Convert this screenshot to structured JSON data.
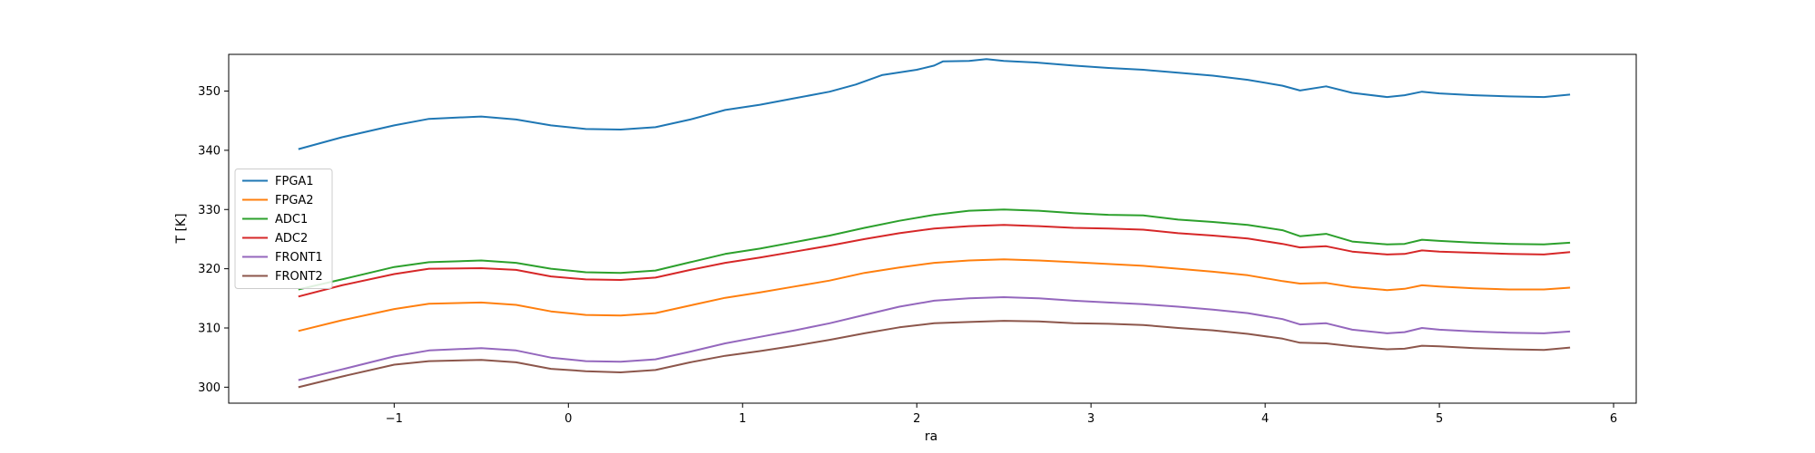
{
  "chart_data": {
    "type": "line",
    "title": "",
    "xlabel": "ra",
    "ylabel": "T [K]",
    "xlim": [
      -1.95,
      6.13
    ],
    "ylim": [
      297.3,
      356.2
    ],
    "xticks": [
      -1,
      0,
      1,
      2,
      3,
      4,
      5,
      6
    ],
    "yticks": [
      300,
      310,
      320,
      330,
      340,
      350
    ],
    "grid": false,
    "legend_position": "center-left",
    "series": [
      {
        "name": "FPGA1",
        "color": "#1f77b4",
        "points": [
          [
            -1.55,
            340.2
          ],
          [
            -1.3,
            342.2
          ],
          [
            -1.0,
            344.2
          ],
          [
            -0.8,
            345.3
          ],
          [
            -0.5,
            345.7
          ],
          [
            -0.3,
            345.2
          ],
          [
            -0.1,
            344.2
          ],
          [
            0.1,
            343.6
          ],
          [
            0.3,
            343.5
          ],
          [
            0.5,
            343.9
          ],
          [
            0.7,
            345.2
          ],
          [
            0.9,
            346.8
          ],
          [
            1.1,
            347.7
          ],
          [
            1.3,
            348.8
          ],
          [
            1.5,
            349.9
          ],
          [
            1.65,
            351.1
          ],
          [
            1.8,
            352.7
          ],
          [
            2.0,
            353.6
          ],
          [
            2.1,
            354.3
          ],
          [
            2.15,
            355.0
          ],
          [
            2.3,
            355.1
          ],
          [
            2.4,
            355.4
          ],
          [
            2.5,
            355.1
          ],
          [
            2.7,
            354.8
          ],
          [
            2.9,
            354.3
          ],
          [
            3.1,
            353.9
          ],
          [
            3.3,
            353.6
          ],
          [
            3.5,
            353.1
          ],
          [
            3.7,
            352.6
          ],
          [
            3.9,
            351.9
          ],
          [
            4.1,
            350.9
          ],
          [
            4.2,
            350.1
          ],
          [
            4.35,
            350.8
          ],
          [
            4.5,
            349.7
          ],
          [
            4.7,
            349.0
          ],
          [
            4.8,
            349.3
          ],
          [
            4.9,
            349.9
          ],
          [
            5.0,
            349.6
          ],
          [
            5.2,
            349.3
          ],
          [
            5.4,
            349.1
          ],
          [
            5.6,
            349.0
          ],
          [
            5.75,
            349.4
          ]
        ]
      },
      {
        "name": "FPGA2",
        "color": "#ff7f0e",
        "points": [
          [
            -1.55,
            309.5
          ],
          [
            -1.3,
            311.3
          ],
          [
            -1.0,
            313.2
          ],
          [
            -0.8,
            314.1
          ],
          [
            -0.5,
            314.3
          ],
          [
            -0.3,
            313.9
          ],
          [
            -0.1,
            312.8
          ],
          [
            0.1,
            312.2
          ],
          [
            0.3,
            312.1
          ],
          [
            0.5,
            312.5
          ],
          [
            0.7,
            313.8
          ],
          [
            0.9,
            315.1
          ],
          [
            1.1,
            316.0
          ],
          [
            1.3,
            317.0
          ],
          [
            1.5,
            318.0
          ],
          [
            1.7,
            319.3
          ],
          [
            1.9,
            320.2
          ],
          [
            2.1,
            321.0
          ],
          [
            2.3,
            321.4
          ],
          [
            2.5,
            321.6
          ],
          [
            2.7,
            321.4
          ],
          [
            2.9,
            321.1
          ],
          [
            3.1,
            320.8
          ],
          [
            3.3,
            320.5
          ],
          [
            3.5,
            320.0
          ],
          [
            3.7,
            319.5
          ],
          [
            3.9,
            318.9
          ],
          [
            4.1,
            317.9
          ],
          [
            4.2,
            317.5
          ],
          [
            4.35,
            317.6
          ],
          [
            4.5,
            316.9
          ],
          [
            4.7,
            316.4
          ],
          [
            4.8,
            316.6
          ],
          [
            4.9,
            317.2
          ],
          [
            5.0,
            317.0
          ],
          [
            5.2,
            316.7
          ],
          [
            5.4,
            316.5
          ],
          [
            5.6,
            316.5
          ],
          [
            5.75,
            316.8
          ]
        ]
      },
      {
        "name": "ADC1",
        "color": "#2ca02c",
        "points": [
          [
            -1.55,
            316.5
          ],
          [
            -1.3,
            318.2
          ],
          [
            -1.0,
            320.3
          ],
          [
            -0.8,
            321.1
          ],
          [
            -0.5,
            321.4
          ],
          [
            -0.3,
            321.0
          ],
          [
            -0.1,
            320.0
          ],
          [
            0.1,
            319.4
          ],
          [
            0.3,
            319.3
          ],
          [
            0.5,
            319.7
          ],
          [
            0.7,
            321.1
          ],
          [
            0.9,
            322.5
          ],
          [
            1.1,
            323.4
          ],
          [
            1.3,
            324.5
          ],
          [
            1.5,
            325.6
          ],
          [
            1.7,
            326.9
          ],
          [
            1.9,
            328.1
          ],
          [
            2.1,
            329.1
          ],
          [
            2.3,
            329.8
          ],
          [
            2.5,
            330.0
          ],
          [
            2.7,
            329.8
          ],
          [
            2.9,
            329.4
          ],
          [
            3.1,
            329.1
          ],
          [
            3.3,
            329.0
          ],
          [
            3.5,
            328.3
          ],
          [
            3.7,
            327.9
          ],
          [
            3.9,
            327.4
          ],
          [
            4.1,
            326.5
          ],
          [
            4.2,
            325.5
          ],
          [
            4.35,
            325.9
          ],
          [
            4.5,
            324.6
          ],
          [
            4.7,
            324.1
          ],
          [
            4.8,
            324.2
          ],
          [
            4.9,
            324.9
          ],
          [
            5.0,
            324.7
          ],
          [
            5.2,
            324.4
          ],
          [
            5.4,
            324.2
          ],
          [
            5.6,
            324.1
          ],
          [
            5.75,
            324.4
          ]
        ]
      },
      {
        "name": "ADC2",
        "color": "#d62728",
        "points": [
          [
            -1.55,
            315.3
          ],
          [
            -1.3,
            317.2
          ],
          [
            -1.0,
            319.1
          ],
          [
            -0.8,
            320.0
          ],
          [
            -0.5,
            320.1
          ],
          [
            -0.3,
            319.8
          ],
          [
            -0.1,
            318.7
          ],
          [
            0.1,
            318.2
          ],
          [
            0.3,
            318.1
          ],
          [
            0.5,
            318.5
          ],
          [
            0.7,
            319.8
          ],
          [
            0.9,
            321.0
          ],
          [
            1.1,
            321.9
          ],
          [
            1.3,
            322.9
          ],
          [
            1.5,
            323.9
          ],
          [
            1.7,
            325.0
          ],
          [
            1.9,
            326.0
          ],
          [
            2.1,
            326.8
          ],
          [
            2.3,
            327.2
          ],
          [
            2.5,
            327.4
          ],
          [
            2.7,
            327.2
          ],
          [
            2.9,
            326.9
          ],
          [
            3.1,
            326.8
          ],
          [
            3.3,
            326.6
          ],
          [
            3.5,
            326.0
          ],
          [
            3.7,
            325.6
          ],
          [
            3.9,
            325.1
          ],
          [
            4.1,
            324.2
          ],
          [
            4.2,
            323.6
          ],
          [
            4.35,
            323.8
          ],
          [
            4.5,
            322.9
          ],
          [
            4.7,
            322.4
          ],
          [
            4.8,
            322.5
          ],
          [
            4.9,
            323.1
          ],
          [
            5.0,
            322.9
          ],
          [
            5.2,
            322.7
          ],
          [
            5.4,
            322.5
          ],
          [
            5.6,
            322.4
          ],
          [
            5.75,
            322.8
          ]
        ]
      },
      {
        "name": "FRONT1",
        "color": "#9467bd",
        "points": [
          [
            -1.55,
            301.2
          ],
          [
            -1.3,
            303.0
          ],
          [
            -1.0,
            305.2
          ],
          [
            -0.8,
            306.2
          ],
          [
            -0.5,
            306.6
          ],
          [
            -0.3,
            306.2
          ],
          [
            -0.1,
            305.0
          ],
          [
            0.1,
            304.4
          ],
          [
            0.3,
            304.3
          ],
          [
            0.5,
            304.7
          ],
          [
            0.7,
            306.0
          ],
          [
            0.9,
            307.4
          ],
          [
            1.1,
            308.5
          ],
          [
            1.3,
            309.6
          ],
          [
            1.5,
            310.8
          ],
          [
            1.7,
            312.2
          ],
          [
            1.9,
            313.6
          ],
          [
            2.1,
            314.6
          ],
          [
            2.3,
            315.0
          ],
          [
            2.5,
            315.2
          ],
          [
            2.7,
            315.0
          ],
          [
            2.9,
            314.6
          ],
          [
            3.1,
            314.3
          ],
          [
            3.3,
            314.0
          ],
          [
            3.5,
            313.6
          ],
          [
            3.7,
            313.1
          ],
          [
            3.9,
            312.5
          ],
          [
            4.1,
            311.5
          ],
          [
            4.2,
            310.6
          ],
          [
            4.35,
            310.8
          ],
          [
            4.5,
            309.7
          ],
          [
            4.7,
            309.1
          ],
          [
            4.8,
            309.3
          ],
          [
            4.9,
            310.0
          ],
          [
            5.0,
            309.7
          ],
          [
            5.2,
            309.4
          ],
          [
            5.4,
            309.2
          ],
          [
            5.6,
            309.1
          ],
          [
            5.75,
            309.4
          ]
        ]
      },
      {
        "name": "FRONT2",
        "color": "#8c564b",
        "points": [
          [
            -1.55,
            300.0
          ],
          [
            -1.3,
            301.8
          ],
          [
            -1.0,
            303.8
          ],
          [
            -0.8,
            304.4
          ],
          [
            -0.5,
            304.6
          ],
          [
            -0.3,
            304.2
          ],
          [
            -0.1,
            303.1
          ],
          [
            0.1,
            302.7
          ],
          [
            0.3,
            302.5
          ],
          [
            0.5,
            302.9
          ],
          [
            0.7,
            304.2
          ],
          [
            0.9,
            305.3
          ],
          [
            1.1,
            306.1
          ],
          [
            1.3,
            307.0
          ],
          [
            1.5,
            308.0
          ],
          [
            1.7,
            309.1
          ],
          [
            1.9,
            310.1
          ],
          [
            2.1,
            310.8
          ],
          [
            2.3,
            311.0
          ],
          [
            2.5,
            311.2
          ],
          [
            2.7,
            311.1
          ],
          [
            2.9,
            310.8
          ],
          [
            3.1,
            310.7
          ],
          [
            3.3,
            310.5
          ],
          [
            3.5,
            310.0
          ],
          [
            3.7,
            309.6
          ],
          [
            3.9,
            309.0
          ],
          [
            4.1,
            308.2
          ],
          [
            4.2,
            307.5
          ],
          [
            4.35,
            307.4
          ],
          [
            4.5,
            306.9
          ],
          [
            4.7,
            306.4
          ],
          [
            4.8,
            306.5
          ],
          [
            4.9,
            307.0
          ],
          [
            5.0,
            306.9
          ],
          [
            5.2,
            306.6
          ],
          [
            5.4,
            306.4
          ],
          [
            5.6,
            306.3
          ],
          [
            5.75,
            306.7
          ]
        ]
      }
    ]
  }
}
